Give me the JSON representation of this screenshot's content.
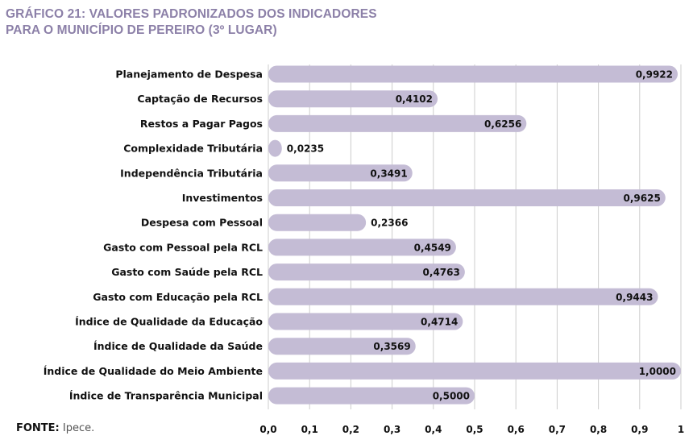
{
  "title_line1": "GRÁFICO 21: VALORES PADRONIZADOS DOS INDICADORES",
  "title_line2": "PARA O MUNICÍPIO DE PEREIRO (3º LUGAR)",
  "source_label": "FONTE:",
  "source_text": "Ipece.",
  "colors": {
    "bar": "#c4bcd5",
    "title": "#8c80a8",
    "grid": "#cccccc"
  },
  "chart_data": {
    "type": "bar",
    "orientation": "horizontal",
    "categories": [
      "Planejamento de Despesa",
      "Captação de Recursos",
      "Restos a Pagar Pagos",
      "Complexidade Tributária",
      "Independência Tributária",
      "Investimentos",
      "Despesa com Pessoal",
      "Gasto com Pessoal pela RCL",
      "Gasto com Saúde pela RCL",
      "Gasto com Educação pela RCL",
      "Índice de Qualidade da Educação",
      "Índice de Qualidade da Saúde",
      "Índice de Qualidade do Meio Ambiente",
      "Índice de Transparência Municipal"
    ],
    "values": [
      0.9922,
      0.4102,
      0.6256,
      0.0235,
      0.3491,
      0.9625,
      0.2366,
      0.4549,
      0.4763,
      0.9443,
      0.4714,
      0.3569,
      1.0,
      0.5
    ],
    "value_labels": [
      "0,9922",
      "0,4102",
      "0,6256",
      "0,0235",
      "0,3491",
      "0,9625",
      "0,2366",
      "0,4549",
      "0,4763",
      "0,9443",
      "0,4714",
      "0,3569",
      "1,0000",
      "0,5000"
    ],
    "xlim": [
      0,
      1
    ],
    "x_ticks": [
      "0,0",
      "0,1",
      "0,2",
      "0,3",
      "0,4",
      "0,5",
      "0,6",
      "0,7",
      "0,8",
      "0,9",
      "1"
    ],
    "grid": true
  }
}
